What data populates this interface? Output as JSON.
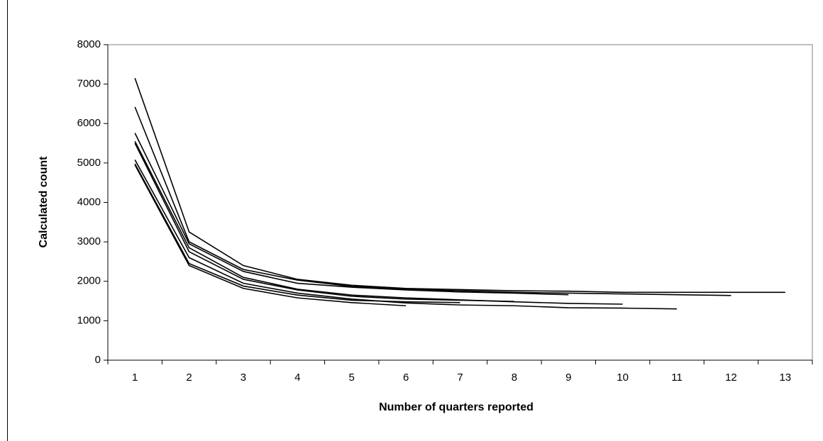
{
  "chart_data": {
    "type": "line",
    "x_label": "Number of quarters reported",
    "y_label": "Calculated count",
    "categories": [
      1,
      2,
      3,
      4,
      5,
      6,
      7,
      8,
      9,
      10,
      11,
      12,
      13
    ],
    "ylim": [
      0,
      8000
    ],
    "yticks": [
      0,
      1000,
      2000,
      3000,
      4000,
      5000,
      6000,
      7000,
      8000
    ],
    "series": [
      {
        "color": "#000000",
        "values": [
          7150,
          3250,
          2400,
          2050,
          1900,
          1820,
          1790,
          1760,
          1750,
          1720,
          1720,
          1720,
          1720
        ]
      },
      {
        "color": "#000000",
        "values": [
          6420,
          3000,
          2300,
          2030,
          1870,
          1800,
          1760,
          1720,
          1700,
          1680,
          1660,
          1640,
          null
        ]
      },
      {
        "color": "#000000",
        "values": [
          5760,
          2950,
          2250,
          1950,
          1850,
          1780,
          1730,
          1700,
          1660,
          null,
          null,
          null,
          null
        ]
      },
      {
        "color": "#000000",
        "values": [
          5550,
          2850,
          2100,
          1800,
          1650,
          1580,
          1530,
          1480,
          1440,
          1420,
          null,
          null,
          null
        ]
      },
      {
        "color": "#000000",
        "values": [
          5500,
          2750,
          2050,
          1780,
          1620,
          1550,
          1520,
          1490,
          null,
          null,
          null,
          null,
          null
        ]
      },
      {
        "color": "#000000",
        "values": [
          5080,
          2600,
          1950,
          1700,
          1550,
          1450,
          1400,
          1380,
          1330,
          1320,
          1300,
          null,
          null
        ]
      },
      {
        "color": "#000000",
        "values": [
          4980,
          2450,
          1880,
          1650,
          1520,
          1480,
          1460,
          null,
          null,
          null,
          null,
          null,
          null
        ]
      },
      {
        "color": "#000000",
        "values": [
          4950,
          2400,
          1820,
          1580,
          1460,
          1380,
          null,
          null,
          null,
          null,
          null,
          null,
          null
        ]
      }
    ]
  }
}
